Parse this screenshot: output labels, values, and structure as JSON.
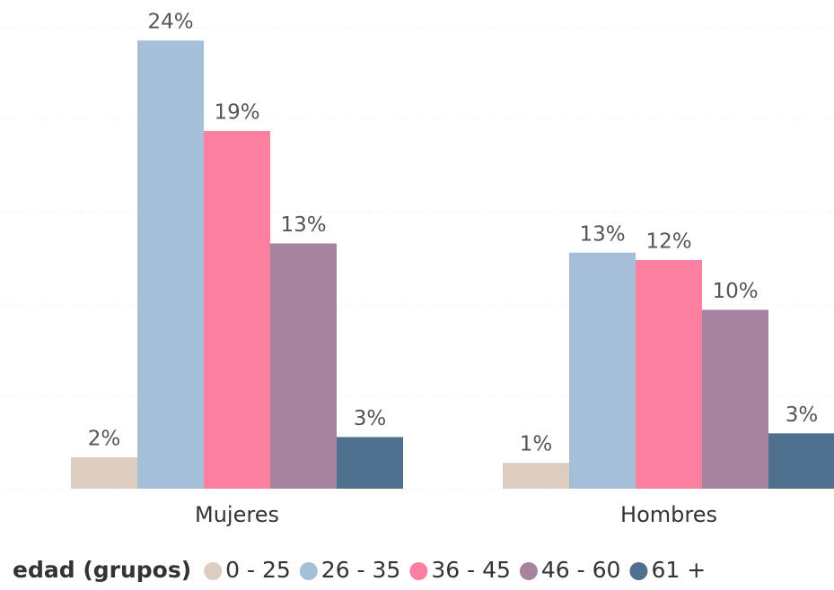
{
  "chart_data": {
    "type": "bar",
    "categories": [
      "Mujeres",
      "Hombres"
    ],
    "legend_title": "edad (grupos)",
    "legend": "bottom",
    "grid": true,
    "ylim": [
      0,
      26.5
    ],
    "yticks": [
      0,
      5,
      10,
      15,
      20,
      25
    ],
    "series": [
      {
        "name": "0 - 25",
        "color": "#ddcdc0",
        "values": [
          1.7,
          1.4
        ],
        "value_labels": [
          "2%",
          "1%"
        ]
      },
      {
        "name": "26 - 35",
        "color": "#a5bfd8",
        "values": [
          24.3,
          12.8
        ],
        "value_labels": [
          "24%",
          "13%"
        ]
      },
      {
        "name": "36 - 45",
        "color": "#fd7fa0",
        "values": [
          19.4,
          12.4
        ],
        "value_labels": [
          "19%",
          "12%"
        ]
      },
      {
        "name": "46 - 60",
        "color": "#a6849f",
        "values": [
          13.3,
          9.7
        ],
        "value_labels": [
          "13%",
          "10%"
        ]
      },
      {
        "name": "61 +",
        "color": "#4f6f8f",
        "values": [
          2.8,
          3.0
        ],
        "value_labels": [
          "3%",
          "3%"
        ]
      }
    ]
  }
}
